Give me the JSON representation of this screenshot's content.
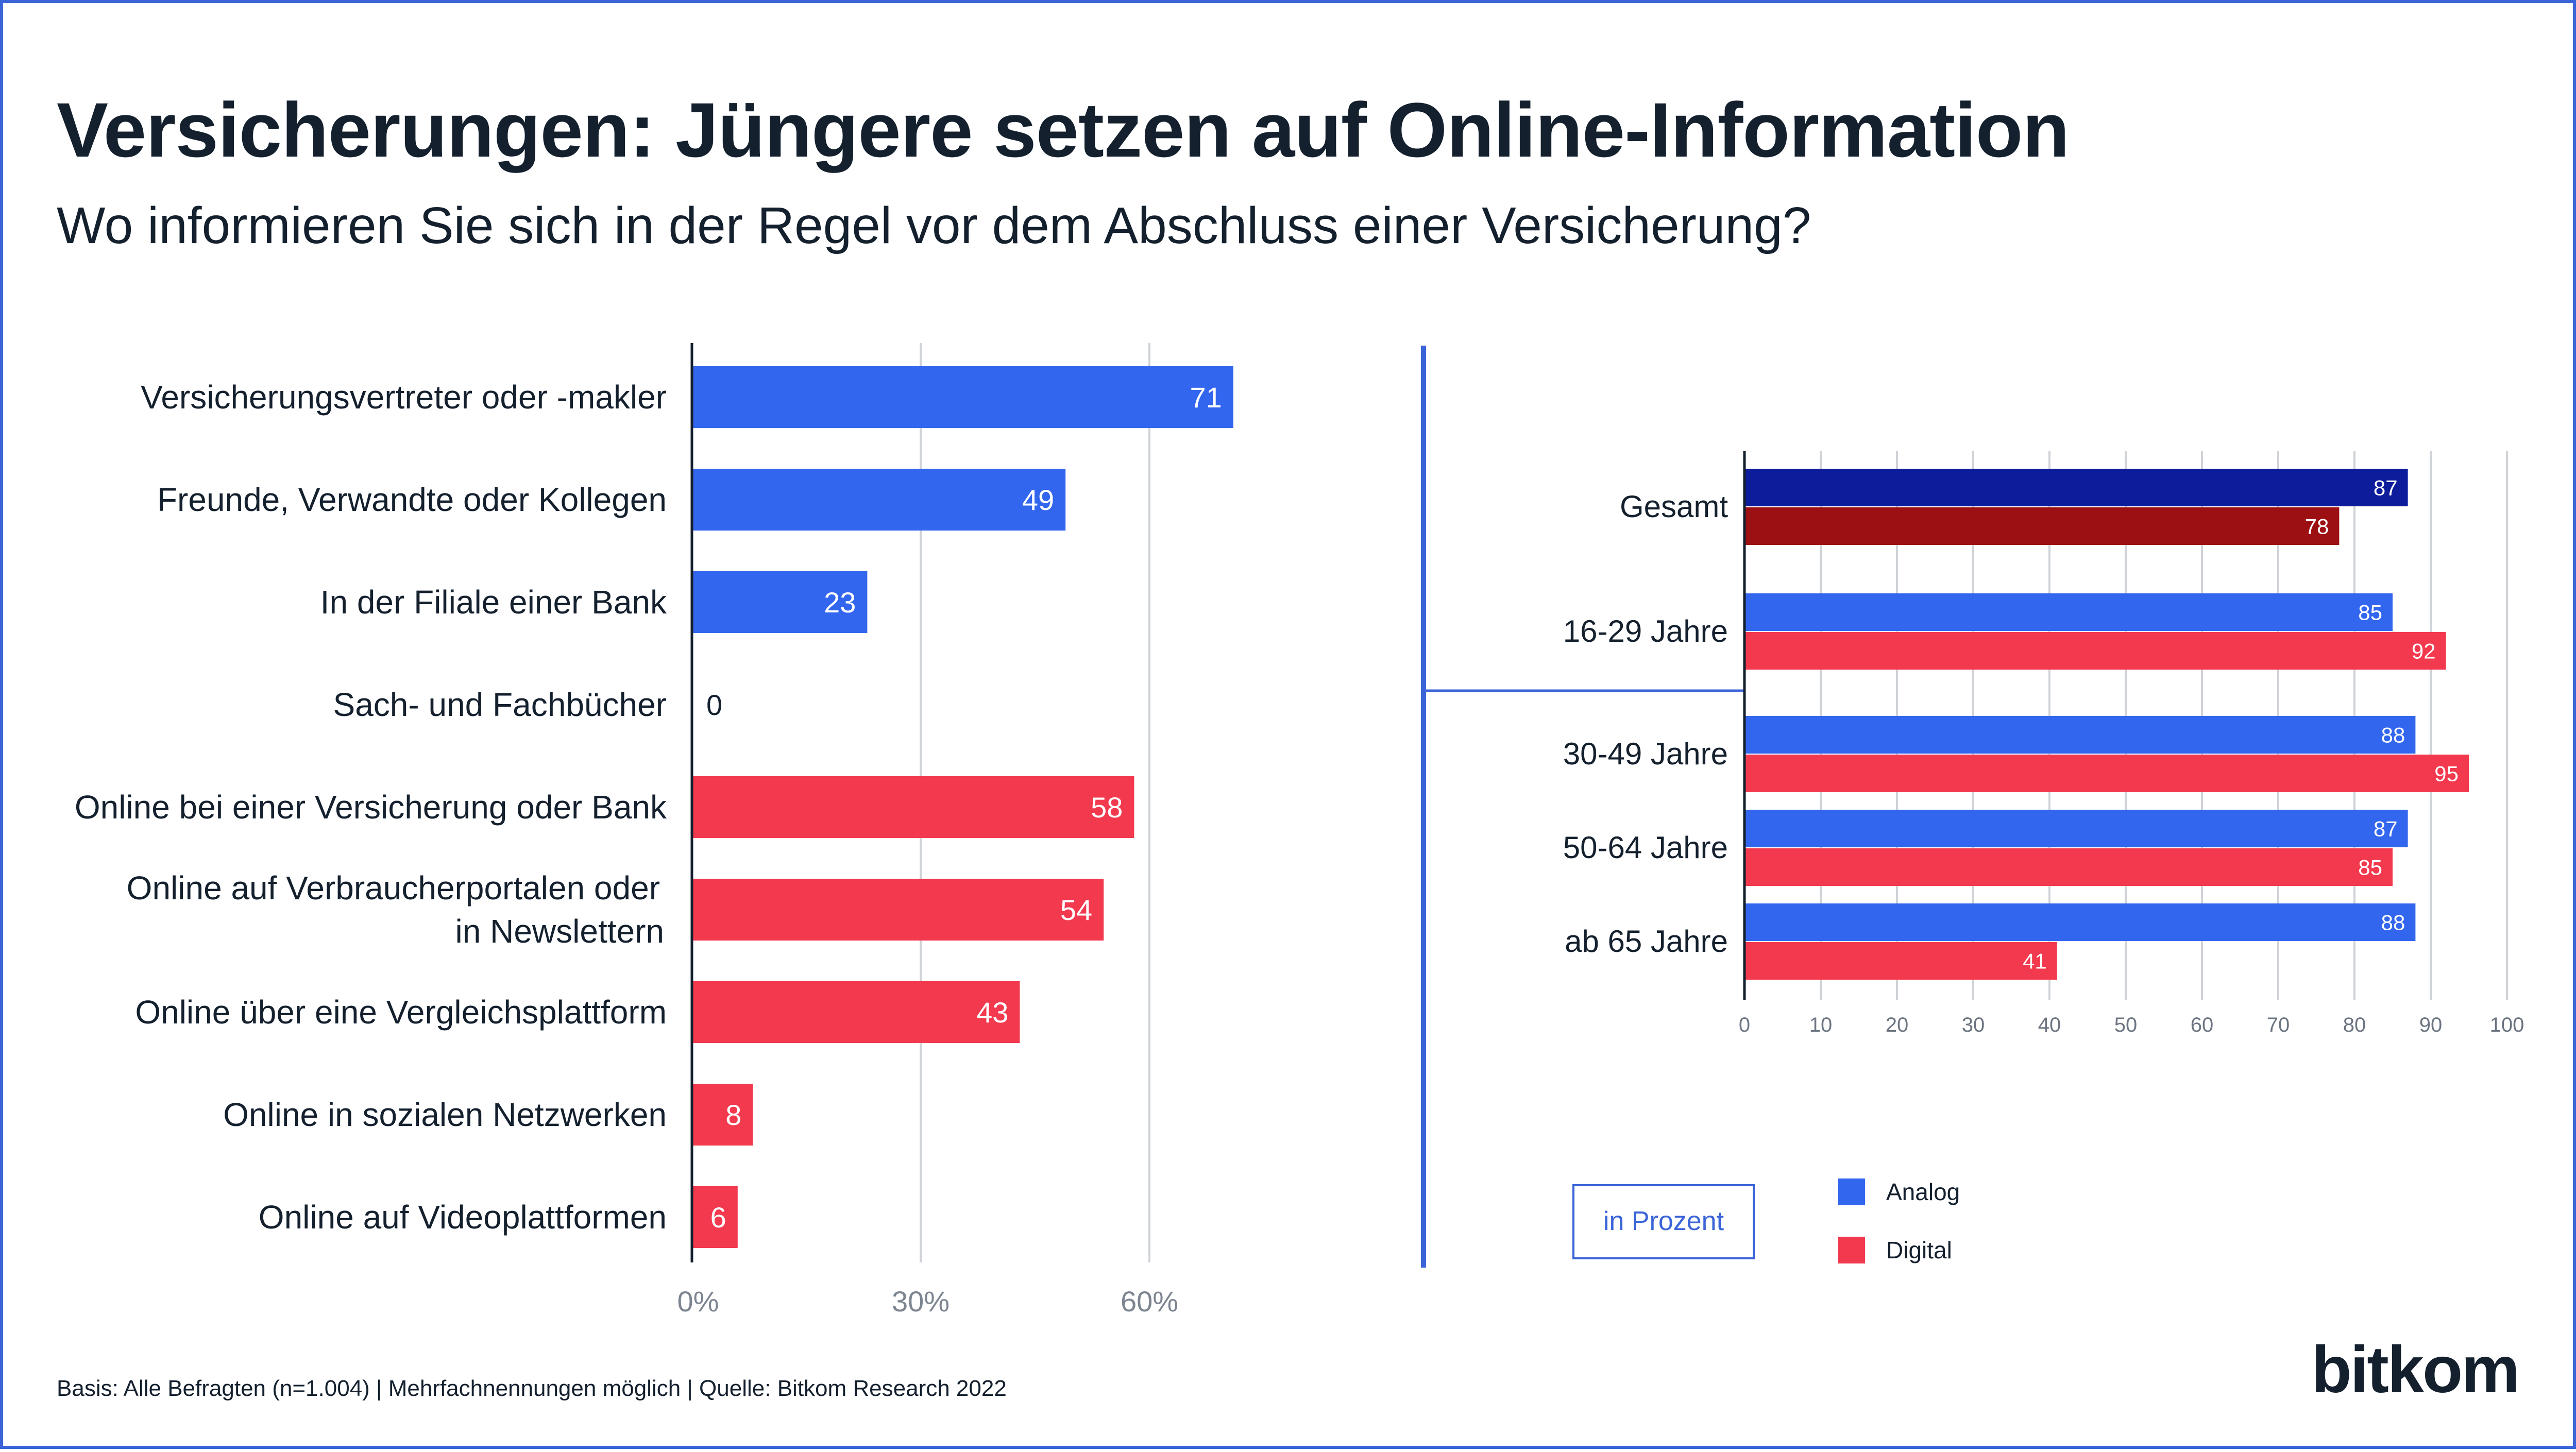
{
  "title": "Versicherungen: Jüngere setzen auf Online-Information",
  "subtitle": "Wo informieren Sie sich in der Regel vor dem Abschluss einer Versicherung?",
  "footnote": "Basis: Alle Befragten (n=1.004) | Mehrfachnennungen möglich | Quelle: Bitkom Research 2022",
  "logo": "bitkom",
  "colors": {
    "analog": "#3366ee",
    "digital": "#f2394e",
    "analog_total": "#0d1c9a",
    "digital_total": "#9c0f12",
    "grid": "#cfd3d8",
    "axis": "#14202e",
    "divider": "#3a64d8"
  },
  "unit_label": "in Prozent",
  "chart_data": [
    {
      "type": "bar",
      "orientation": "horizontal",
      "categories": [
        [
          "Versicherungsvertreter oder -makler"
        ],
        [
          "Freunde, Verwandte oder Kollegen"
        ],
        [
          "In der Filiale einer Bank"
        ],
        [
          "Sach- und Fachbücher"
        ],
        [
          "Online bei einer Versicherung oder Bank"
        ],
        [
          "Online auf Verbraucherportalen oder",
          "in Newslettern"
        ],
        [
          "Online über eine Vergleichsplattform"
        ],
        [
          "Online in sozialen Netzwerken"
        ],
        [
          "Online auf Videoplattformen"
        ]
      ],
      "values": [
        71,
        49,
        23,
        0,
        58,
        54,
        43,
        8,
        6
      ],
      "group": [
        "analog",
        "analog",
        "analog",
        "analog",
        "digital",
        "digital",
        "digital",
        "digital",
        "digital"
      ],
      "xlim": [
        0,
        75
      ],
      "xticks": [
        0,
        30,
        60
      ],
      "xtick_labels": [
        "0%",
        "30%",
        "60%"
      ],
      "grid": true
    },
    {
      "type": "bar",
      "orientation": "horizontal",
      "categories": [
        "Gesamt",
        "16-29 Jahre",
        "30-49 Jahre",
        "50-64 Jahre",
        "ab 65 Jahre"
      ],
      "series": [
        {
          "name": "Analog",
          "values": [
            87,
            85,
            88,
            87,
            88
          ]
        },
        {
          "name": "Digital",
          "values": [
            78,
            92,
            95,
            85,
            41
          ]
        }
      ],
      "xlim": [
        0,
        100
      ],
      "xticks": [
        0,
        10,
        20,
        30,
        40,
        50,
        60,
        70,
        80,
        90,
        100
      ],
      "grid": true,
      "legend": "bottom"
    }
  ]
}
